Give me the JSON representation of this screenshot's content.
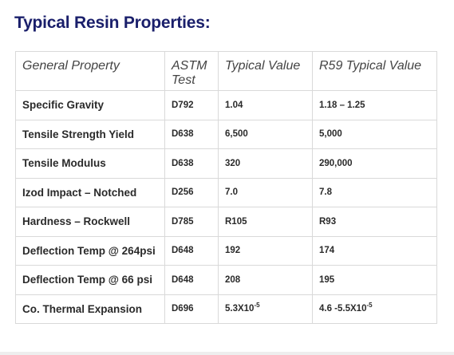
{
  "title": "Typical Resin Properties:",
  "table": {
    "headers": [
      "General Property",
      "ASTM Test",
      "Typical Value",
      "R59 Typical Value"
    ],
    "rows": [
      {
        "property": "Specific Gravity",
        "astm": "D792",
        "typical": "1.04",
        "r59": "1.18 – 1.25"
      },
      {
        "property": "Tensile Strength Yield",
        "astm": "D638",
        "typical": "6,500",
        "r59": "5,000"
      },
      {
        "property": "Tensile Modulus",
        "astm": "D638",
        "typical": "320",
        "r59": "290,000"
      },
      {
        "property": "Izod Impact – Notched",
        "astm": "D256",
        "typical": "7.0",
        "r59": "7.8"
      },
      {
        "property": "Hardness – Rockwell",
        "astm": "D785",
        "typical": "R105",
        "r59": "R93"
      },
      {
        "property": "Deflection Temp @ 264psi",
        "astm": "D648",
        "typical": "192",
        "r59": "174"
      },
      {
        "property": "Deflection Temp @ 66 psi",
        "astm": "D648",
        "typical": "208",
        "r59": "195"
      },
      {
        "property": "Co. Thermal Expansion",
        "astm": "D696",
        "typical": "5.3X10",
        "typical_exp": "-5",
        "r59": "4.6 -5.5X10",
        "r59_exp": "-5"
      }
    ]
  },
  "colors": {
    "title": "#1a1f6b",
    "border": "#d9d9d9",
    "text": "#2a2a2a"
  }
}
